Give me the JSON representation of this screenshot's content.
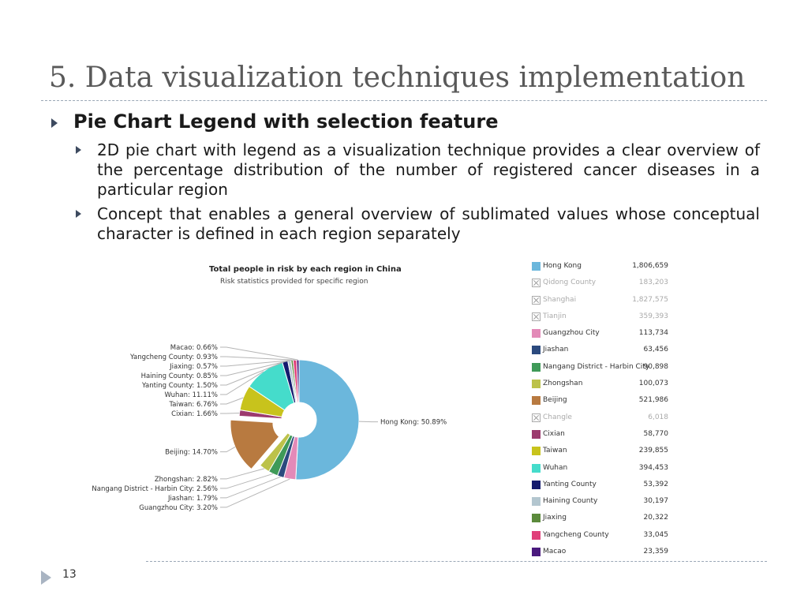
{
  "slide": {
    "title": "5. Data visualization techniques implementation",
    "bullet_main": "Pie Chart Legend with selection feature",
    "sub_bullets": [
      "2D pie chart with legend as a visualization technique provides a clear overview of the percentage distribution of the number of registered cancer diseases in a particular region",
      "Concept that enables a general overview of sublimated values whose conceptual character is defined in each region separately"
    ],
    "page_number": "13"
  },
  "chart_data": {
    "type": "pie",
    "title": "Total people in risk by each region in China",
    "subtitle": "Risk statistics provided for specific region",
    "slices": [
      {
        "name": "Hong Kong",
        "percent": 50.89,
        "label": "Hong Kong: 50.89%",
        "color": "#6bb7dc"
      },
      {
        "name": "Guangzhou City",
        "percent": 3.2,
        "label": "Guangzhou City: 3.20%",
        "color": "#e38ab8"
      },
      {
        "name": "Jiashan",
        "percent": 1.79,
        "label": "Jiashan: 1.79%",
        "color": "#2b4a7e"
      },
      {
        "name": "Nangang District - Harbin City",
        "percent": 2.56,
        "label": "Nangang District - Harbin City: 2.56%",
        "color": "#3f9a58"
      },
      {
        "name": "Zhongshan",
        "percent": 2.82,
        "label": "Zhongshan: 2.82%",
        "color": "#bcc24a"
      },
      {
        "name": "Beijing",
        "percent": 14.7,
        "label": "Beijing: 14.70%",
        "color": "#b87a40",
        "exploded": true
      },
      {
        "name": "Cixian",
        "percent": 1.66,
        "label": "Cixian: 1.66%",
        "color": "#9c3a6e"
      },
      {
        "name": "Taiwan",
        "percent": 6.76,
        "label": "Taiwan: 6.76%",
        "color": "#c8c31c"
      },
      {
        "name": "Wuhan",
        "percent": 11.11,
        "label": "Wuhan: 11.11%",
        "color": "#45dccb"
      },
      {
        "name": "Yanting County",
        "percent": 1.5,
        "label": "Yanting County: 1.50%",
        "color": "#141a6e"
      },
      {
        "name": "Haining County",
        "percent": 0.85,
        "label": "Haining County: 0.85%",
        "color": "#b3c6cf"
      },
      {
        "name": "Jiaxing",
        "percent": 0.57,
        "label": "Jiaxing: 0.57%",
        "color": "#5b8a3c"
      },
      {
        "name": "Yangcheng County",
        "percent": 0.93,
        "label": "Yangcheng County: 0.93%",
        "color": "#e0407a"
      },
      {
        "name": "Macao",
        "percent": 0.66,
        "label": "Macao: 0.66%",
        "color": "#4a1a7e"
      }
    ],
    "legend": [
      {
        "name": "Hong Kong",
        "value": "1,806,659",
        "color": "#6bb7dc",
        "selected": true
      },
      {
        "name": "Qidong County",
        "value": "183,203",
        "selected": false
      },
      {
        "name": "Shanghai",
        "value": "1,827,575",
        "selected": false
      },
      {
        "name": "Tianjin",
        "value": "359,393",
        "selected": false
      },
      {
        "name": "Guangzhou City",
        "value": "113,734",
        "color": "#e38ab8",
        "selected": true
      },
      {
        "name": "Jiashan",
        "value": "63,456",
        "color": "#2b4a7e",
        "selected": true
      },
      {
        "name": "Nangang District - Harbin City",
        "value": "90,898",
        "color": "#3f9a58",
        "selected": true
      },
      {
        "name": "Zhongshan",
        "value": "100,073",
        "color": "#bcc24a",
        "selected": true
      },
      {
        "name": "Beijing",
        "value": "521,986",
        "color": "#b87a40",
        "selected": true
      },
      {
        "name": "Changle",
        "value": "6,018",
        "selected": false
      },
      {
        "name": "Cixian",
        "value": "58,770",
        "color": "#9c3a6e",
        "selected": true
      },
      {
        "name": "Taiwan",
        "value": "239,855",
        "color": "#c8c31c",
        "selected": true
      },
      {
        "name": "Wuhan",
        "value": "394,453",
        "color": "#45dccb",
        "selected": true
      },
      {
        "name": "Yanting County",
        "value": "53,392",
        "color": "#141a6e",
        "selected": true
      },
      {
        "name": "Haining County",
        "value": "30,197",
        "color": "#b3c6cf",
        "selected": true
      },
      {
        "name": "Jiaxing",
        "value": "20,322",
        "color": "#5b8a3c",
        "selected": true
      },
      {
        "name": "Yangcheng County",
        "value": "33,045",
        "color": "#e0407a",
        "selected": true
      },
      {
        "name": "Macao",
        "value": "23,359",
        "color": "#4a1a7e",
        "selected": true
      }
    ]
  }
}
